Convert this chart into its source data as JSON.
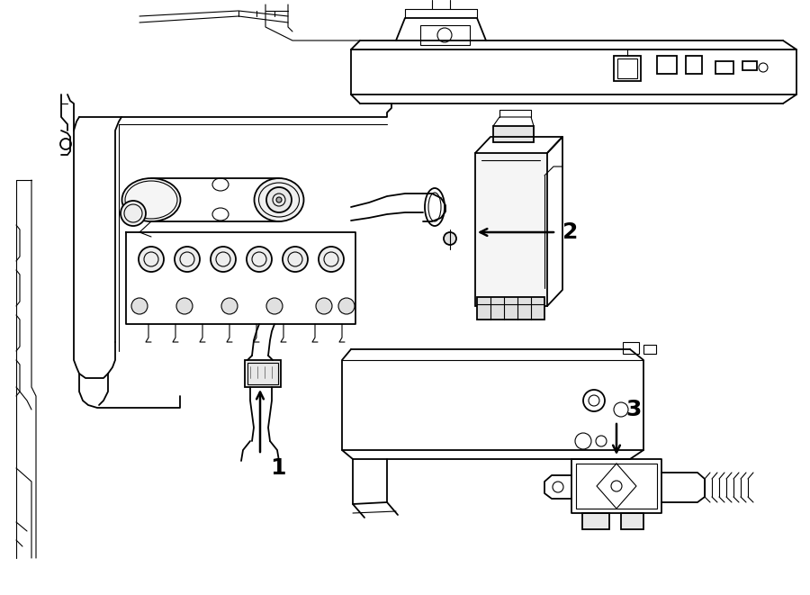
{
  "background_color": "#ffffff",
  "fig_width": 9.0,
  "fig_height": 6.61,
  "dpi": 100,
  "label_1": "1",
  "label_2": "2",
  "label_3": "3",
  "label_fontsize": 18,
  "line_color": "#000000",
  "text_color": "#000000",
  "lw_main": 1.3,
  "lw_thin": 0.8,
  "lw_thick": 1.8
}
